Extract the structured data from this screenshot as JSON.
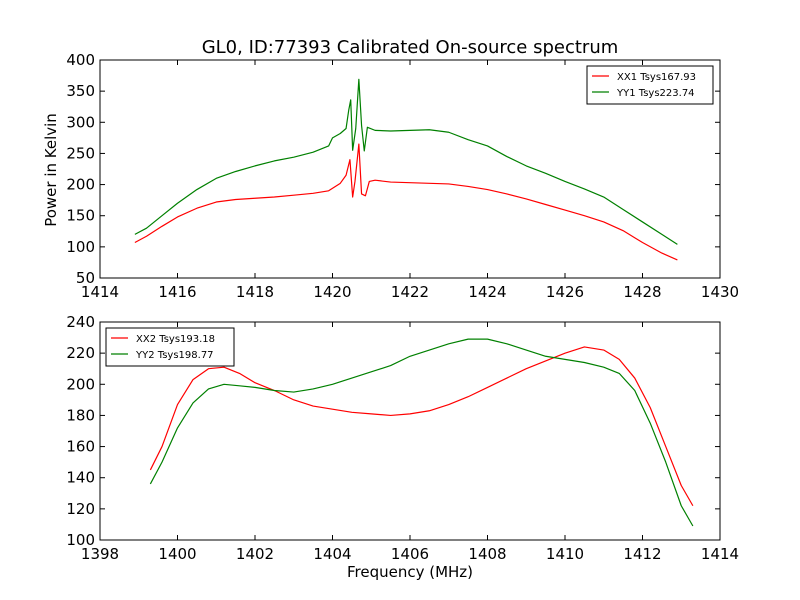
{
  "figure": {
    "title": "GL0, ID:77393 Calibrated On-source spectrum",
    "ylabel": "Power in Kelvin",
    "xlabel": "Frequency (MHz)"
  },
  "chart_data": [
    {
      "type": "line",
      "title": "GL0, ID:77393 Calibrated On-source spectrum",
      "ylabel": "Power in Kelvin",
      "xlabel": "",
      "xlim": [
        1414,
        1430
      ],
      "ylim": [
        50,
        400
      ],
      "xticks": [
        1414,
        1416,
        1418,
        1420,
        1422,
        1424,
        1426,
        1428,
        1430
      ],
      "yticks": [
        50,
        100,
        150,
        200,
        250,
        300,
        350,
        400
      ],
      "legend_position": "top-right",
      "series": [
        {
          "name": "XX1 Tsys167.93",
          "color": "#ff0000",
          "points": [
            [
              1414.9,
              107
            ],
            [
              1415.2,
              117
            ],
            [
              1415.6,
              133
            ],
            [
              1416.0,
              148
            ],
            [
              1416.5,
              162
            ],
            [
              1417.0,
              172
            ],
            [
              1417.5,
              176
            ],
            [
              1418.0,
              178
            ],
            [
              1418.5,
              180
            ],
            [
              1419.0,
              183
            ],
            [
              1419.5,
              186
            ],
            [
              1419.9,
              190
            ],
            [
              1420.2,
              202
            ],
            [
              1420.35,
              215
            ],
            [
              1420.45,
              240
            ],
            [
              1420.52,
              180
            ],
            [
              1420.58,
              205
            ],
            [
              1420.68,
              265
            ],
            [
              1420.75,
              185
            ],
            [
              1420.85,
              182
            ],
            [
              1420.95,
              205
            ],
            [
              1421.1,
              207
            ],
            [
              1421.5,
              204
            ],
            [
              1422.0,
              203
            ],
            [
              1422.5,
              202
            ],
            [
              1423.0,
              201
            ],
            [
              1423.5,
              197
            ],
            [
              1424.0,
              192
            ],
            [
              1424.5,
              185
            ],
            [
              1425.0,
              177
            ],
            [
              1425.5,
              168
            ],
            [
              1426.0,
              159
            ],
            [
              1426.5,
              150
            ],
            [
              1427.0,
              140
            ],
            [
              1427.5,
              126
            ],
            [
              1428.0,
              107
            ],
            [
              1428.5,
              90
            ],
            [
              1428.9,
              79
            ]
          ]
        },
        {
          "name": "YY1 Tsys223.74",
          "color": "#008000",
          "points": [
            [
              1414.9,
              120
            ],
            [
              1415.2,
              130
            ],
            [
              1415.6,
              150
            ],
            [
              1416.0,
              170
            ],
            [
              1416.5,
              192
            ],
            [
              1417.0,
              210
            ],
            [
              1417.5,
              221
            ],
            [
              1418.0,
              230
            ],
            [
              1418.5,
              238
            ],
            [
              1419.0,
              244
            ],
            [
              1419.5,
              252
            ],
            [
              1419.9,
              262
            ],
            [
              1420.0,
              275
            ],
            [
              1420.2,
              282
            ],
            [
              1420.35,
              290
            ],
            [
              1420.42,
              320
            ],
            [
              1420.47,
              336
            ],
            [
              1420.52,
              255
            ],
            [
              1420.6,
              290
            ],
            [
              1420.68,
              369
            ],
            [
              1420.75,
              295
            ],
            [
              1420.82,
              254
            ],
            [
              1420.9,
              292
            ],
            [
              1421.1,
              287
            ],
            [
              1421.5,
              286
            ],
            [
              1422.0,
              287
            ],
            [
              1422.5,
              288
            ],
            [
              1423.0,
              284
            ],
            [
              1423.5,
              272
            ],
            [
              1424.0,
              262
            ],
            [
              1424.5,
              245
            ],
            [
              1425.0,
              230
            ],
            [
              1425.5,
              218
            ],
            [
              1426.0,
              205
            ],
            [
              1426.5,
              193
            ],
            [
              1427.0,
              180
            ],
            [
              1427.5,
              160
            ],
            [
              1428.0,
              140
            ],
            [
              1428.5,
              120
            ],
            [
              1428.9,
              104
            ]
          ]
        }
      ]
    },
    {
      "type": "line",
      "title": "",
      "ylabel": "",
      "xlabel": "Frequency (MHz)",
      "xlim": [
        1398,
        1414
      ],
      "ylim": [
        100,
        240
      ],
      "xticks": [
        1398,
        1400,
        1402,
        1404,
        1406,
        1408,
        1410,
        1412,
        1414
      ],
      "yticks": [
        100,
        120,
        140,
        160,
        180,
        200,
        220,
        240
      ],
      "legend_position": "top-left",
      "series": [
        {
          "name": "XX2 Tsys193.18",
          "color": "#ff0000",
          "points": [
            [
              1399.3,
              145
            ],
            [
              1399.6,
              160
            ],
            [
              1400.0,
              187
            ],
            [
              1400.4,
              203
            ],
            [
              1400.8,
              210
            ],
            [
              1401.2,
              211
            ],
            [
              1401.6,
              207
            ],
            [
              1402.0,
              201
            ],
            [
              1402.5,
              196
            ],
            [
              1403.0,
              190
            ],
            [
              1403.5,
              186
            ],
            [
              1404.0,
              184
            ],
            [
              1404.5,
              182
            ],
            [
              1405.0,
              181
            ],
            [
              1405.5,
              180
            ],
            [
              1406.0,
              181
            ],
            [
              1406.5,
              183
            ],
            [
              1407.0,
              187
            ],
            [
              1407.5,
              192
            ],
            [
              1408.0,
              198
            ],
            [
              1408.5,
              204
            ],
            [
              1409.0,
              210
            ],
            [
              1409.5,
              215
            ],
            [
              1410.0,
              220
            ],
            [
              1410.5,
              224
            ],
            [
              1411.0,
              222
            ],
            [
              1411.4,
              216
            ],
            [
              1411.8,
              204
            ],
            [
              1412.2,
              185
            ],
            [
              1412.6,
              160
            ],
            [
              1413.0,
              135
            ],
            [
              1413.3,
              122
            ]
          ]
        },
        {
          "name": "YY2 Tsys198.77",
          "color": "#008000",
          "points": [
            [
              1399.3,
              136
            ],
            [
              1399.6,
              150
            ],
            [
              1400.0,
              172
            ],
            [
              1400.4,
              188
            ],
            [
              1400.8,
              197
            ],
            [
              1401.2,
              200
            ],
            [
              1401.6,
              199
            ],
            [
              1402.0,
              198
            ],
            [
              1402.5,
              196
            ],
            [
              1403.0,
              195
            ],
            [
              1403.5,
              197
            ],
            [
              1404.0,
              200
            ],
            [
              1404.5,
              204
            ],
            [
              1405.0,
              208
            ],
            [
              1405.5,
              212
            ],
            [
              1406.0,
              218
            ],
            [
              1406.5,
              222
            ],
            [
              1407.0,
              226
            ],
            [
              1407.5,
              229
            ],
            [
              1408.0,
              229
            ],
            [
              1408.5,
              226
            ],
            [
              1409.0,
              222
            ],
            [
              1409.5,
              218
            ],
            [
              1410.0,
              216
            ],
            [
              1410.5,
              214
            ],
            [
              1411.0,
              211
            ],
            [
              1411.4,
              207
            ],
            [
              1411.8,
              196
            ],
            [
              1412.2,
              175
            ],
            [
              1412.6,
              150
            ],
            [
              1413.0,
              122
            ],
            [
              1413.3,
              109
            ]
          ]
        }
      ]
    }
  ]
}
